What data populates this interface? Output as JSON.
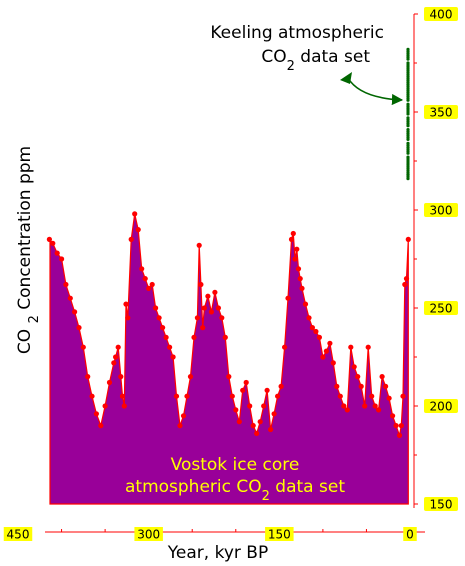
{
  "chart_data": {
    "type": "area",
    "xlabel": "Year, kyr BP",
    "ylabel": "CO2 Concentration ppm",
    "ylabel_sub": "2",
    "xlim": [
      450,
      0
    ],
    "ylim": [
      150,
      400
    ],
    "x_ticks": [
      "450",
      "300",
      "150",
      "0"
    ],
    "x_tick_values": [
      450,
      300,
      150,
      0
    ],
    "y_ticks": [
      "150",
      "200",
      "250",
      "300",
      "350",
      "400"
    ],
    "y_tick_values": [
      150,
      200,
      250,
      300,
      350,
      400
    ],
    "colors": {
      "fill": "#990099",
      "vostok_line": "#ff0000",
      "keeling": "#006600",
      "tick_bg": "#ffff00",
      "annot_vostok": "#ffff00",
      "annot_keeling": "#000000",
      "axis": "#ff0000"
    },
    "annotations": {
      "keeling_line1": "Keeling atmospheric",
      "keeling_line2": "CO",
      "keeling_sub": "2",
      "keeling_line2_tail": " data set",
      "vostok_line1": "Vostok ice core",
      "vostok_line2": "atmospheric CO",
      "vostok_sub": "2",
      "vostok_line2_tail": " data set"
    },
    "series": [
      {
        "name": "Vostok ice core",
        "x": [
          414,
          410,
          405,
          400,
          395,
          390,
          385,
          380,
          375,
          370,
          365,
          360,
          355,
          350,
          345,
          340,
          338,
          335,
          332,
          330,
          328,
          326,
          324,
          320,
          316,
          312,
          308,
          304,
          300,
          296,
          292,
          288,
          284,
          280,
          276,
          272,
          268,
          264,
          260,
          256,
          252,
          248,
          244,
          242,
          240,
          238,
          236,
          232,
          228,
          224,
          220,
          216,
          212,
          208,
          204,
          200,
          196,
          192,
          188,
          184,
          180,
          176,
          172,
          168,
          164,
          160,
          156,
          152,
          148,
          144,
          140,
          136,
          134,
          132,
          130,
          128,
          126,
          124,
          120,
          116,
          112,
          108,
          104,
          100,
          96,
          92,
          88,
          84,
          80,
          76,
          72,
          68,
          64,
          60,
          56,
          52,
          48,
          44,
          40,
          36,
          32,
          28,
          24,
          20,
          16,
          12,
          10,
          8,
          6,
          4,
          2
        ],
        "y": [
          285,
          283,
          278,
          275,
          262,
          255,
          248,
          240,
          230,
          215,
          205,
          196,
          190,
          200,
          212,
          222,
          225,
          230,
          215,
          205,
          200,
          252,
          245,
          285,
          298,
          290,
          270,
          265,
          260,
          262,
          250,
          245,
          240,
          235,
          230,
          225,
          205,
          190,
          195,
          205,
          215,
          235,
          245,
          282,
          262,
          240,
          250,
          256,
          248,
          258,
          250,
          245,
          235,
          215,
          205,
          198,
          192,
          208,
          212,
          200,
          190,
          186,
          192,
          200,
          208,
          188,
          196,
          205,
          210,
          230,
          255,
          285,
          288,
          275,
          280,
          270,
          265,
          260,
          252,
          245,
          240,
          238,
          235,
          225,
          228,
          232,
          222,
          210,
          205,
          200,
          198,
          230,
          220,
          215,
          210,
          200,
          230,
          205,
          200,
          198,
          215,
          210,
          204,
          195,
          190,
          185,
          190,
          205,
          262,
          265,
          285
        ]
      },
      {
        "name": "Keeling atmospheric CO2 data set",
        "x": [
          1,
          1,
          1,
          1,
          1,
          1,
          1,
          1,
          1,
          1,
          1,
          1,
          1,
          1,
          1,
          1,
          1,
          1,
          1,
          1,
          1,
          1,
          1,
          1,
          1,
          1,
          1,
          1,
          1,
          1,
          1,
          1,
          1,
          1,
          1,
          1,
          1,
          1,
          1,
          1,
          1,
          1,
          1,
          1,
          1,
          1,
          1,
          1,
          1,
          1,
          1,
          1,
          1,
          1,
          1,
          1,
          1,
          1,
          1,
          1,
          1,
          1
        ],
        "y": [
          316,
          317,
          318,
          318,
          319,
          320,
          321,
          322,
          323,
          324,
          325,
          326,
          327,
          329,
          330,
          331,
          332,
          333,
          334,
          336,
          337,
          338,
          339,
          340,
          341,
          343,
          344,
          345,
          346,
          347,
          349,
          350,
          351,
          352,
          353,
          354,
          356,
          357,
          358,
          359,
          360,
          361,
          362,
          363,
          364,
          365,
          366,
          367,
          368,
          369,
          370,
          371,
          372,
          373,
          374,
          375,
          377,
          378,
          379,
          380,
          381,
          382
        ]
      }
    ]
  }
}
